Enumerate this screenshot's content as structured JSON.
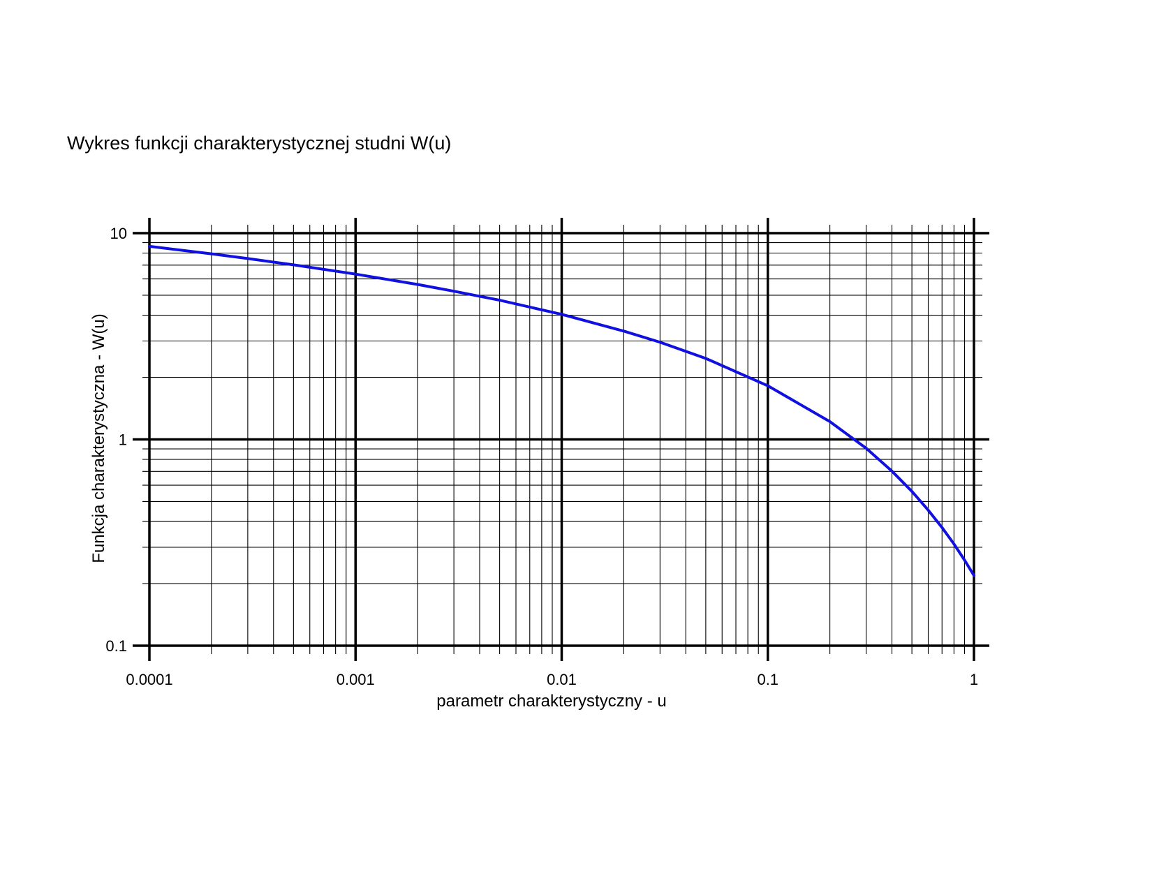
{
  "chart_data": {
    "type": "line",
    "title": "Wykres funkcji charakterystycznej studni W(u)",
    "xlabel": "parametr charakterystyczny - u",
    "ylabel": "Funkcja charakterystyczna - W(u)",
    "xscale": "log",
    "yscale": "log",
    "xlim": [
      0.0001,
      1
    ],
    "ylim": [
      0.1,
      10
    ],
    "grid": true,
    "xticks": [
      "0.0001",
      "0.001",
      "0.01",
      "0.1",
      "1"
    ],
    "yticks": [
      "0.1",
      "1",
      "10"
    ],
    "series": [
      {
        "color": "#1010e0",
        "x": [
          0.0001,
          0.0002,
          0.0003,
          0.0005,
          0.001,
          0.002,
          0.003,
          0.005,
          0.01,
          0.02,
          0.03,
          0.05,
          0.1,
          0.2,
          0.3,
          0.4,
          0.5,
          0.6,
          0.7,
          0.8,
          0.9,
          1.0
        ],
        "y": [
          8.63,
          7.94,
          7.53,
          7.02,
          6.33,
          5.64,
          5.23,
          4.73,
          4.04,
          3.35,
          2.96,
          2.47,
          1.82,
          1.22,
          0.906,
          0.702,
          0.56,
          0.454,
          0.374,
          0.311,
          0.26,
          0.219
        ]
      }
    ]
  }
}
